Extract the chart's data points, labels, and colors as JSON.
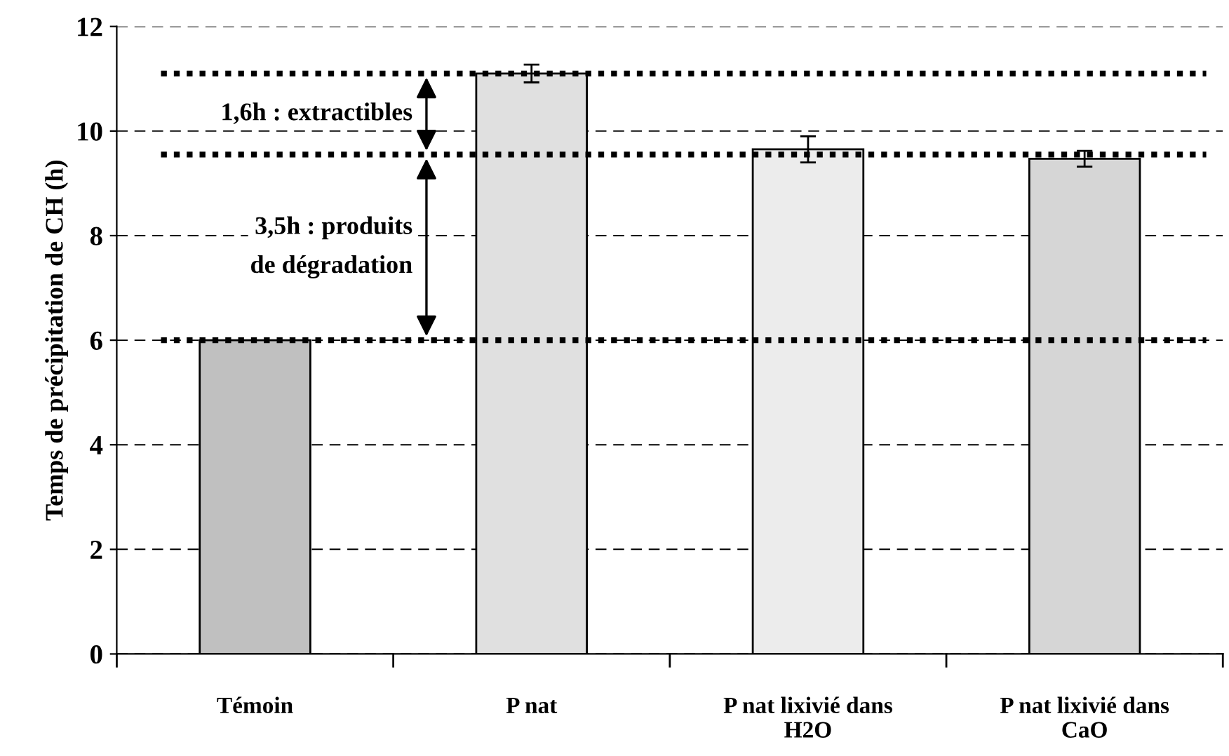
{
  "chart_data": {
    "type": "bar",
    "ylabel": "Temps de précipitation de CH (h)",
    "categories": [
      "Témoin",
      "P nat",
      "P nat lixivié dans\nH2O",
      "P nat lixivié dans\nCaO"
    ],
    "values": [
      6.0,
      11.1,
      9.65,
      9.47
    ],
    "errors": [
      null,
      0.17,
      0.25,
      0.15
    ],
    "colors": [
      "#c0c0c0",
      "#e0e0e0",
      "#ececec",
      "#d6d6d6"
    ],
    "ylim": [
      0,
      12
    ],
    "yticks": [
      0,
      2,
      4,
      6,
      8,
      10,
      12
    ],
    "grid": "y",
    "ref_lines": [
      {
        "axis": "y",
        "value": 11.1,
        "line_style": "dotted",
        "color": "#000000"
      },
      {
        "axis": "y",
        "value": 9.55,
        "line_style": "dotted",
        "color": "#000000"
      },
      {
        "axis": "y",
        "value": 6.0,
        "line_style": "dotted",
        "color": "#000000"
      }
    ],
    "annotations": [
      "1,6h : extractibles",
      "3,5h : produits\nde dégradation"
    ]
  }
}
